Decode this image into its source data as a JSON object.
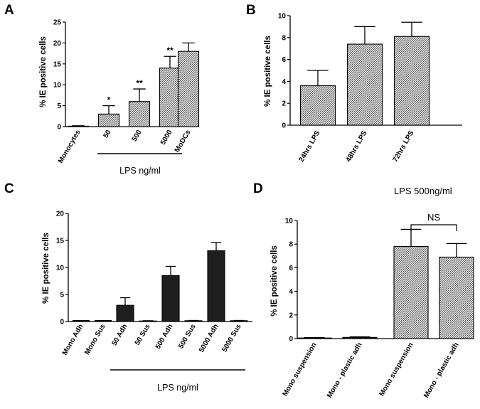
{
  "chart_data": [
    {
      "panel": "A",
      "type": "bar",
      "ylabel": "% IE positive cells",
      "ylim": [
        0,
        25
      ],
      "yticks": [
        0,
        5,
        10,
        15,
        20,
        25
      ],
      "categories": [
        "Monocytes",
        "50",
        "500",
        "5000",
        "MoDCs"
      ],
      "values": [
        0.1,
        3,
        6,
        14,
        18
      ],
      "errors": [
        0.1,
        2,
        3,
        2.8,
        2
      ],
      "significance": [
        "",
        "*",
        "**",
        "**",
        ""
      ],
      "fill": [
        "hatch",
        "hatch",
        "hatch",
        "hatch",
        "hatch"
      ],
      "group_label": "LPS ng/ml"
    },
    {
      "panel": "B",
      "type": "bar",
      "ylabel": "% IE positive cells",
      "ylim": [
        0,
        10
      ],
      "yticks": [
        0,
        2,
        4,
        6,
        8,
        10
      ],
      "categories": [
        "24hrs LPS",
        "48hrs LPS",
        "72hrs LPS"
      ],
      "values": [
        3.6,
        7.4,
        8.1
      ],
      "errors": [
        1.4,
        1.6,
        1.3
      ],
      "fill": [
        "hatch",
        "hatch",
        "hatch"
      ]
    },
    {
      "panel": "C",
      "type": "bar",
      "ylabel": "% IE positive cells",
      "ylim": [
        0,
        20
      ],
      "yticks": [
        0,
        5,
        10,
        15,
        20
      ],
      "categories": [
        "Mono Adh",
        "Mono Sus",
        "50 Adh",
        "50 Sus",
        "500 Adh",
        "500 Sus",
        "5000 Adh",
        "5000 Sus"
      ],
      "values": [
        0.05,
        0.05,
        3,
        0.1,
        8.5,
        0.15,
        13.1,
        0.15
      ],
      "errors": [
        0,
        0,
        1.4,
        0.05,
        1.7,
        0.05,
        1.5,
        0.05
      ],
      "fill": [
        "solid",
        "solid",
        "solid",
        "solid",
        "solid",
        "solid",
        "solid",
        "solid"
      ],
      "group_label": "LPS ng/ml"
    },
    {
      "panel": "D",
      "type": "bar",
      "title": "LPS 500ng/ml",
      "ylabel": "% IE positive cells",
      "ylim": [
        0,
        10
      ],
      "yticks": [
        0,
        2,
        4,
        6,
        8,
        10
      ],
      "categories": [
        "Mono suspension",
        "Mono - plastic adh",
        "Mono suspension",
        "Mono - plastic adh"
      ],
      "values": [
        0.05,
        0.1,
        7.8,
        6.9
      ],
      "errors": [
        0.03,
        0.05,
        1.45,
        1.15
      ],
      "fill": [
        "solid",
        "solid",
        "hatch",
        "hatch"
      ],
      "significance_bracket": {
        "from": 2,
        "to": 3,
        "label": "NS"
      }
    }
  ]
}
